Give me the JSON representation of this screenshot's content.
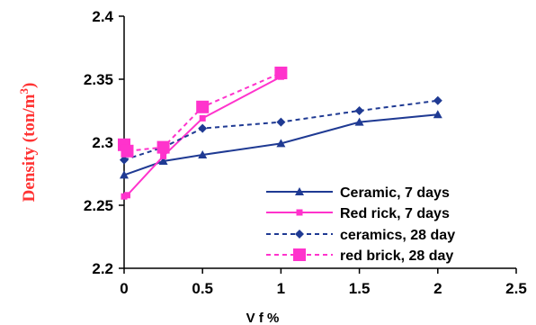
{
  "chart_data": {
    "type": "line",
    "xlabel": "V f %",
    "ylabel": {
      "text": "Density (ton/m",
      "superscript": "3",
      "close": ")",
      "color": "#ff3333"
    },
    "xlim": [
      0,
      2.5
    ],
    "ylim": [
      2.2,
      2.4
    ],
    "xticks": [
      "0",
      "0.5",
      "1",
      "1.5",
      "2",
      "2.5"
    ],
    "xtick_values": [
      0,
      0.5,
      1,
      1.5,
      2,
      2.5
    ],
    "yticks": [
      "2.2",
      "2.25",
      "2.3",
      "2.35",
      "2.4"
    ],
    "ytick_values": [
      2.2,
      2.25,
      2.3,
      2.35,
      2.4
    ],
    "grid": false,
    "legend_position": "bottom-right",
    "series": [
      {
        "name": "Ceramic, 7 days",
        "color": "#1f3a93",
        "dash": "solid",
        "marker": "triangle",
        "x": [
          0,
          0.25,
          0.5,
          1,
          1.5,
          2
        ],
        "y": [
          2.274,
          2.285,
          2.29,
          2.299,
          2.316,
          2.322
        ]
      },
      {
        "name": "Red rick, 7 days",
        "color": "#ff33cc",
        "dash": "solid",
        "marker": "small-square",
        "x": [
          0,
          0.02,
          0.25,
          0.5,
          1
        ],
        "y": [
          2.257,
          2.258,
          2.289,
          2.319,
          2.352
        ]
      },
      {
        "name": "ceramics, 28 day",
        "color": "#1f3a93",
        "dash": "dashed",
        "marker": "diamond",
        "x": [
          0,
          0.25,
          0.5,
          1,
          1.5,
          2
        ],
        "y": [
          2.286,
          2.296,
          2.311,
          2.316,
          2.325,
          2.333
        ]
      },
      {
        "name": "red brick, 28 day",
        "color": "#ff33cc",
        "dash": "dashed",
        "marker": "large-square",
        "x": [
          0,
          0.02,
          0.25,
          0.5,
          1
        ],
        "y": [
          2.298,
          2.293,
          2.296,
          2.328,
          2.355
        ]
      }
    ]
  }
}
